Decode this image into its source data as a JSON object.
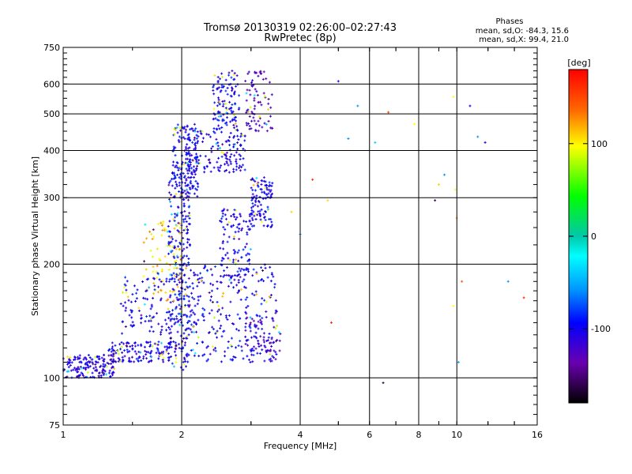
{
  "chart_data": {
    "type": "scatter",
    "title": "Tromsø 20130319 02:26:00–02:27:43",
    "subtitle": "RwPretec (8p)",
    "xlabel": "Frequency [MHz]",
    "ylabel": "Stationary phase Virtual Height [km]",
    "x_scale": "log",
    "y_scale": "log",
    "xlim": [
      1,
      16
    ],
    "ylim": [
      75,
      750
    ],
    "x_ticks": [
      1,
      2,
      4,
      6,
      8,
      10,
      16
    ],
    "x_tick_labels": [
      "1",
      "2",
      "4",
      "6",
      "8",
      "10",
      "16"
    ],
    "y_ticks": [
      75,
      100,
      200,
      300,
      400,
      500,
      600,
      750
    ],
    "y_tick_labels": [
      "75",
      "100",
      "200",
      "300",
      "400",
      "500",
      "600",
      "750"
    ],
    "grid": true,
    "colorbar": {
      "label": "[deg]",
      "range": [
        -180,
        180
      ],
      "ticks": [
        100,
        0,
        -100
      ],
      "tick_labels": [
        "100",
        "0",
        "-100"
      ]
    },
    "phases": {
      "heading": "Phases",
      "line_o": "mean, sd,O: -84.3, 15.6",
      "line_x": "mean, sd,X:  99.4, 21.0"
    },
    "clusters": [
      {
        "x": [
          1.0,
          1.35
        ],
        "y": [
          100,
          115
        ],
        "phase": -110,
        "n": 160
      },
      {
        "x": [
          1.3,
          1.9
        ],
        "y": [
          110,
          125
        ],
        "phase": -105,
        "n": 140
      },
      {
        "x": [
          1.85,
          2.1
        ],
        "y": [
          105,
          350
        ],
        "phase": -100,
        "n": 260
      },
      {
        "x": [
          1.6,
          2.0
        ],
        "y": [
          160,
          260
        ],
        "phase": 110,
        "n": 80
      },
      {
        "x": [
          1.9,
          2.2
        ],
        "y": [
          300,
          470
        ],
        "phase": -100,
        "n": 160
      },
      {
        "x": [
          2.05,
          2.9
        ],
        "y": [
          350,
          460
        ],
        "phase": -105,
        "n": 160
      },
      {
        "x": [
          2.4,
          2.8
        ],
        "y": [
          460,
          650
        ],
        "phase": -100,
        "n": 110
      },
      {
        "x": [
          2.5,
          3.0
        ],
        "y": [
          180,
          280
        ],
        "phase": -100,
        "n": 110
      },
      {
        "x": [
          3.0,
          3.4
        ],
        "y": [
          250,
          340
        ],
        "phase": -100,
        "n": 110
      },
      {
        "x": [
          2.9,
          3.4
        ],
        "y": [
          450,
          650
        ],
        "phase": -130,
        "n": 80
      },
      {
        "x": [
          2.1,
          3.5
        ],
        "y": [
          110,
          200
        ],
        "phase": -100,
        "n": 240
      },
      {
        "x": [
          1.4,
          2.2
        ],
        "y": [
          130,
          190
        ],
        "phase": -100,
        "n": 150
      },
      {
        "x": [
          2.9,
          3.6
        ],
        "y": [
          110,
          150
        ],
        "phase": -130,
        "n": 70
      }
    ],
    "scattered_points": [
      {
        "x": 5.0,
        "y": 610,
        "phase": -100
      },
      {
        "x": 5.6,
        "y": 525,
        "phase": -60
      },
      {
        "x": 6.7,
        "y": 505,
        "phase": 150
      },
      {
        "x": 7.8,
        "y": 470,
        "phase": 100
      },
      {
        "x": 5.3,
        "y": 430,
        "phase": -60
      },
      {
        "x": 6.2,
        "y": 420,
        "phase": -40
      },
      {
        "x": 9.8,
        "y": 555,
        "phase": 100
      },
      {
        "x": 10.8,
        "y": 525,
        "phase": -100
      },
      {
        "x": 11.3,
        "y": 435,
        "phase": -60
      },
      {
        "x": 11.8,
        "y": 420,
        "phase": -100
      },
      {
        "x": 9.3,
        "y": 345,
        "phase": -60
      },
      {
        "x": 9.0,
        "y": 325,
        "phase": 110
      },
      {
        "x": 9.9,
        "y": 315,
        "phase": 100
      },
      {
        "x": 8.8,
        "y": 295,
        "phase": -160
      },
      {
        "x": 10.0,
        "y": 265,
        "phase": 120
      },
      {
        "x": 4.7,
        "y": 295,
        "phase": 110
      },
      {
        "x": 4.3,
        "y": 335,
        "phase": 160
      },
      {
        "x": 4.0,
        "y": 240,
        "phase": -60
      },
      {
        "x": 3.8,
        "y": 275,
        "phase": 110
      },
      {
        "x": 10.3,
        "y": 180,
        "phase": 140
      },
      {
        "x": 13.5,
        "y": 180,
        "phase": -60
      },
      {
        "x": 14.8,
        "y": 163,
        "phase": 160
      },
      {
        "x": 9.8,
        "y": 155,
        "phase": 100
      },
      {
        "x": 4.8,
        "y": 140,
        "phase": 160
      },
      {
        "x": 10.1,
        "y": 110,
        "phase": -50
      },
      {
        "x": 6.5,
        "y": 97,
        "phase": -160
      }
    ]
  }
}
